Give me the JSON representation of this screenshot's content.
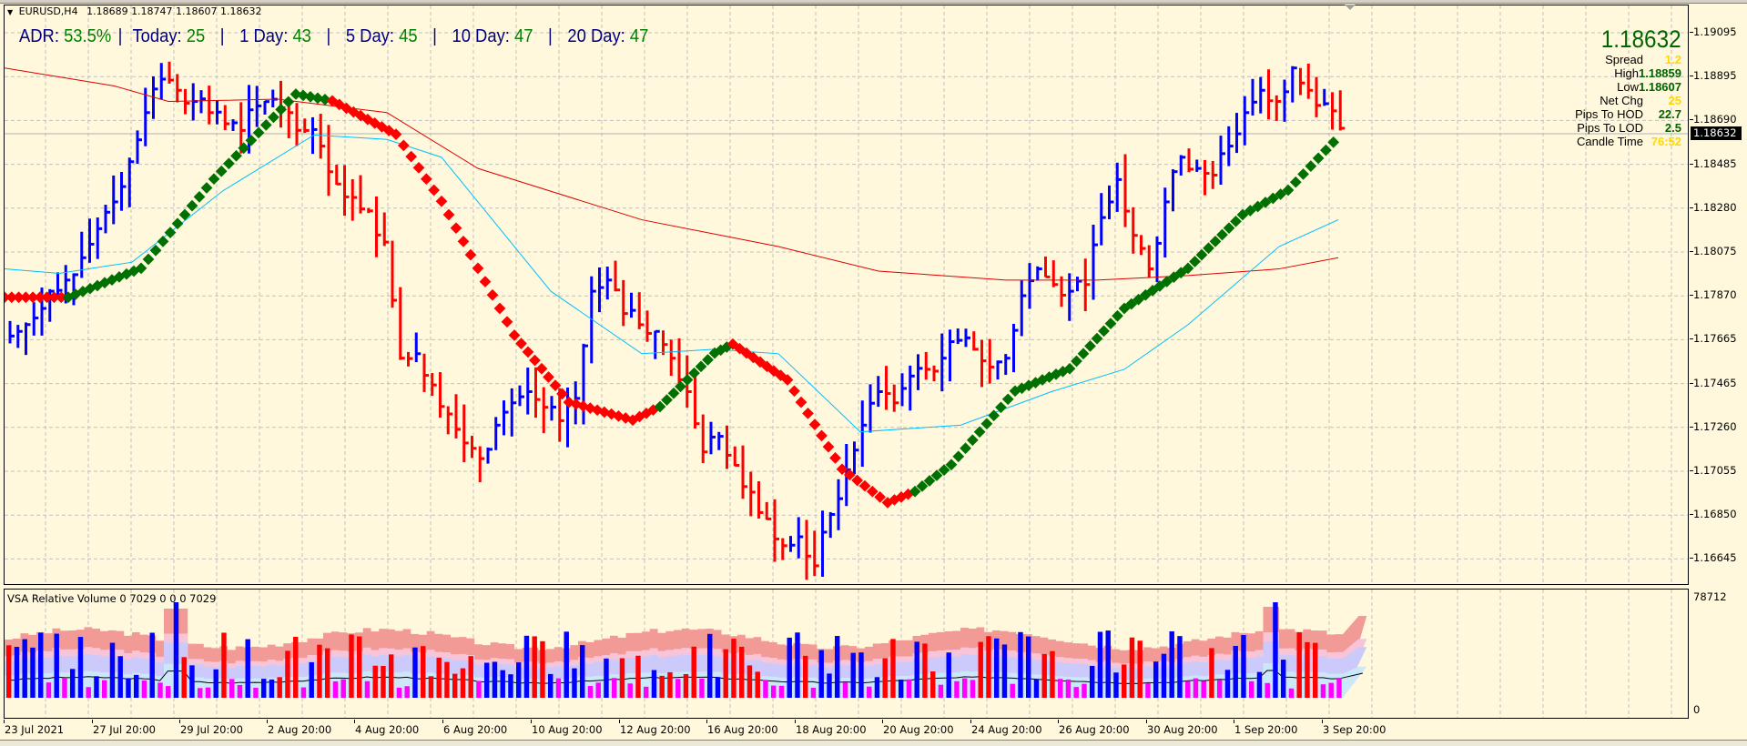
{
  "header": {
    "symbol": "EURUSD,H4",
    "ohlc": "1.18689 1.18747 1.18607 1.18632"
  },
  "adr": {
    "items": [
      {
        "label": "ADR:",
        "value": "53.5%"
      },
      {
        "label": "Today:",
        "value": "25"
      },
      {
        "label": "1 Day:",
        "value": "43"
      },
      {
        "label": "5 Day:",
        "value": "45"
      },
      {
        "label": "10 Day:",
        "value": "47"
      },
      {
        "label": "20 Day:",
        "value": "47"
      }
    ],
    "separator": "|"
  },
  "info_panel": {
    "price": "1.18632",
    "rows": [
      {
        "key": "Spread",
        "value": "1.2",
        "color": "#ffd700"
      },
      {
        "key": "High",
        "value": "1.18859",
        "color": "#006400"
      },
      {
        "key": "Low",
        "value": "1.18607",
        "color": "#006400"
      },
      {
        "key": "Net Chg",
        "value": "25",
        "color": "#ffd700"
      },
      {
        "key": "Pips To HOD",
        "value": "22.7",
        "color": "#006400"
      },
      {
        "key": "Pips To LOD",
        "value": "2.5",
        "color": "#006400"
      },
      {
        "key": "Candle Time",
        "value": "76:52",
        "color": "#ffd700"
      }
    ]
  },
  "price_axis": {
    "labels": [
      "1.19095",
      "1.18895",
      "1.18690",
      "1.18485",
      "1.18280",
      "1.18075",
      "1.17870",
      "1.17665",
      "1.17465",
      "1.17260",
      "1.17055",
      "1.16850",
      "1.16645"
    ],
    "current": "1.18632"
  },
  "indicator": {
    "title": "VSA Relative Volume 0 7029 0 0 0 7029",
    "axis_max": "78712",
    "axis_min": "0"
  },
  "time_axis": {
    "labels": [
      "23 Jul 2021",
      "27 Jul 20:00",
      "29 Jul 20:00",
      "2 Aug 20:00",
      "4 Aug 20:00",
      "6 Aug 20:00",
      "10 Aug 20:00",
      "12 Aug 20:00",
      "16 Aug 20:00",
      "18 Aug 20:00",
      "20 Aug 20:00",
      "24 Aug 20:00",
      "26 Aug 20:00",
      "30 Aug 20:00",
      "1 Sep 20:00",
      "3 Sep 20:00"
    ]
  },
  "colors": {
    "background": "#fff8dc",
    "grid": "#c0c0c0",
    "bull_bar": "#0000ff",
    "bear_bar": "#ff0000",
    "ma_fast": "#00bfff",
    "ma_slow": "#dd0000",
    "trail_up": "#007000",
    "trail_down": "#ff0000",
    "vol_band1": "#f29a96",
    "vol_band2": "#f7c4d8",
    "vol_band3": "#cccafa",
    "vol_band4": "#cce6fa",
    "vol_climax": "#ff00ff"
  },
  "chart_data": {
    "type": "ohlc",
    "title": "EURUSD,H4",
    "symbol": "EURUSD",
    "timeframe": "H4",
    "last": {
      "open": 1.18689,
      "high": 1.18747,
      "low": 1.18607,
      "close": 1.18632
    },
    "ylim": [
      1.1658,
      1.1918
    ],
    "yticks": [
      1.19095,
      1.18895,
      1.1869,
      1.18485,
      1.1828,
      1.18075,
      1.1787,
      1.17665,
      1.17465,
      1.1726,
      1.17055,
      1.1685,
      1.16645
    ],
    "xticks": [
      "23 Jul 2021",
      "27 Jul 20:00",
      "29 Jul 20:00",
      "2 Aug 20:00",
      "4 Aug 20:00",
      "6 Aug 20:00",
      "10 Aug 20:00",
      "12 Aug 20:00",
      "16 Aug 20:00",
      "18 Aug 20:00",
      "20 Aug 20:00",
      "24 Aug 20:00",
      "26 Aug 20:00",
      "30 Aug 20:00",
      "1 Sep 20:00",
      "3 Sep 20:00"
    ],
    "price_path_close": [
      1.1772,
      1.1778,
      1.179,
      1.1795,
      1.1805,
      1.1818,
      1.183,
      1.1848,
      1.187,
      1.1885,
      1.188,
      1.1875,
      1.187,
      1.1865,
      1.1862,
      1.1873,
      1.1876,
      1.187,
      1.1862,
      1.1855,
      1.1838,
      1.1832,
      1.1826,
      1.1812,
      1.176,
      1.1762,
      1.1748,
      1.1735,
      1.1722,
      1.1715,
      1.173,
      1.174,
      1.1745,
      1.1738,
      1.1732,
      1.1742,
      1.179,
      1.1795,
      1.178,
      1.1775,
      1.1772,
      1.176,
      1.1745,
      1.1718,
      1.1725,
      1.1712,
      1.17,
      1.1688,
      1.1676,
      1.168,
      1.1667,
      1.169,
      1.171,
      1.173,
      1.1745,
      1.174,
      1.1752,
      1.1755,
      1.176,
      1.1768,
      1.1764,
      1.1756,
      1.176,
      1.1788,
      1.18,
      1.1793,
      1.179,
      1.1793,
      1.1823,
      1.184,
      1.1815,
      1.18,
      1.183,
      1.185,
      1.1845,
      1.1842,
      1.1855,
      1.187,
      1.188,
      1.1875,
      1.189,
      1.188,
      1.1874,
      1.1863
    ],
    "series": [
      {
        "name": "MA fast (cyan)",
        "values_desc": "rises from 1.1800 to 1.1860 (2 Aug), falls to 1.1727 (20 Aug), rises to 1.1820 (3 Sep)"
      },
      {
        "name": "MA slow (red)",
        "values_desc": "falls from 1.1890 (23 Jul) to 1.1795 (26 Aug), rises to 1.1805 (3 Sep)"
      },
      {
        "name": "Trailing stop dots",
        "values_desc": "green uptrend to 1.1878 (2 Aug), red downtrend to 1.1732 (12 Aug), green to 1.1766 (16 Aug), red to 1.1695 (20 Aug), green to 1.1860 (3 Sep)"
      }
    ],
    "indicator": {
      "name": "VSA Relative Volume",
      "ylim": [
        0,
        78712
      ],
      "params": "0 7029 0 0 0 7029"
    },
    "grid": true
  }
}
